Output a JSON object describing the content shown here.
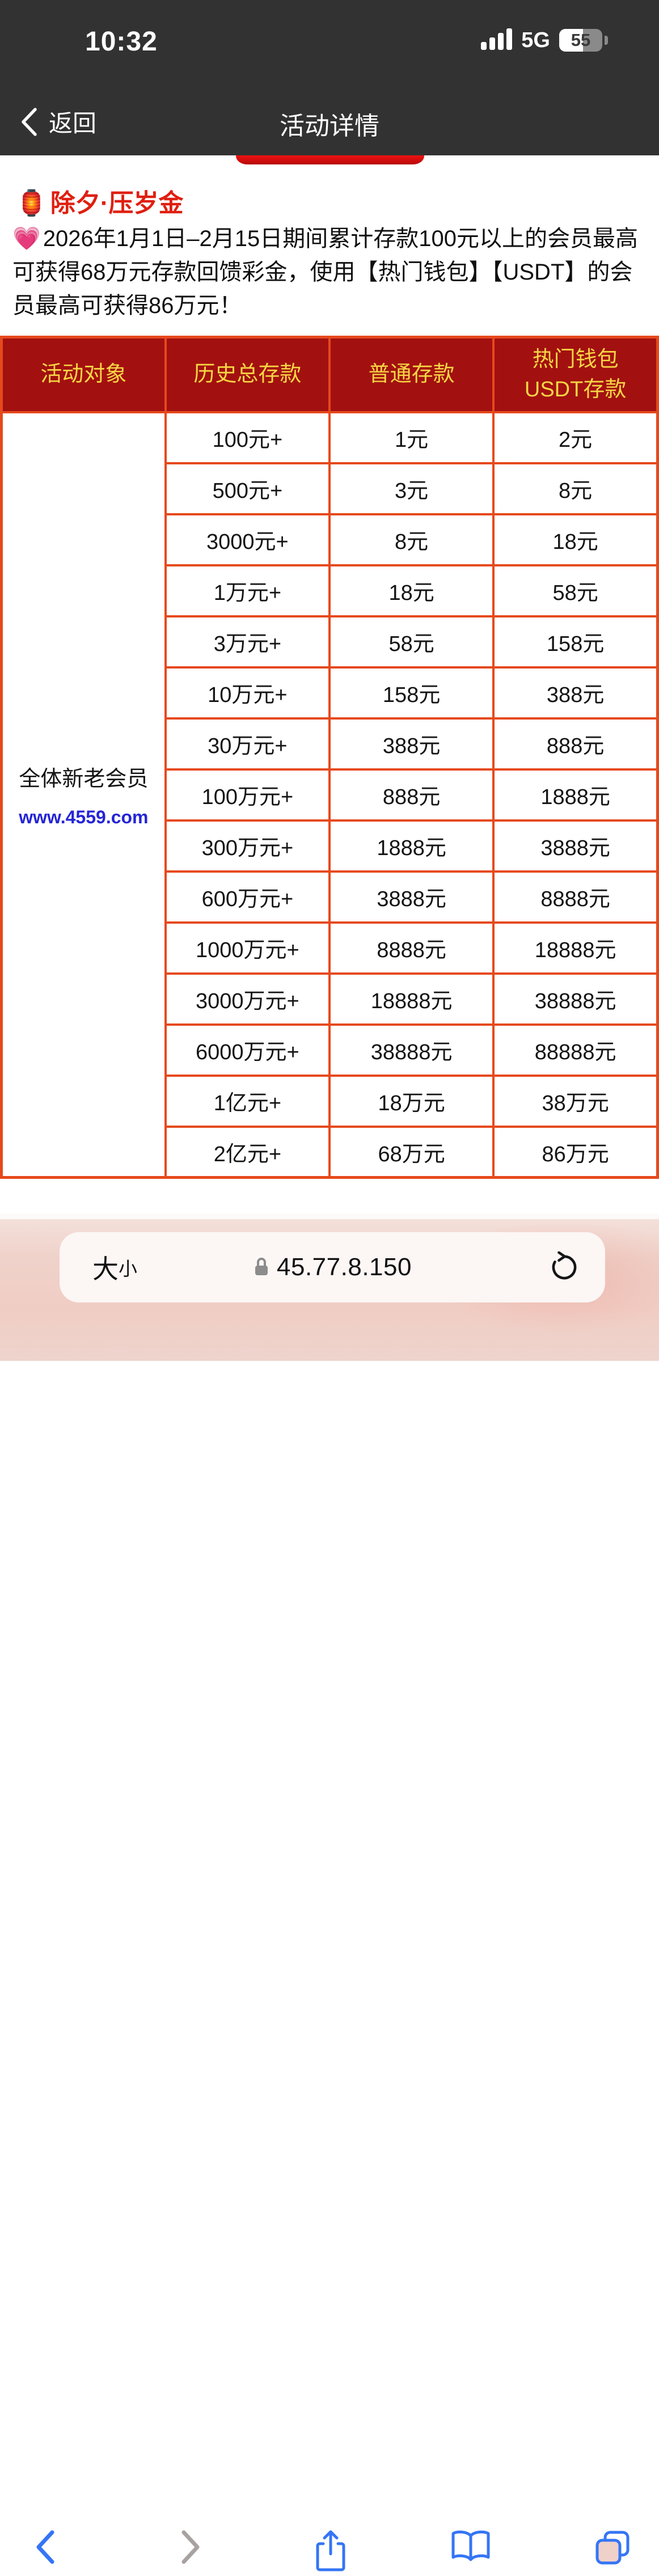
{
  "status_bar": {
    "time": "10:32",
    "network": "5G",
    "battery_percent": "55"
  },
  "nav_bar": {
    "back_label": "返回",
    "title": "活动详情"
  },
  "promo": {
    "title_emoji": "🏮",
    "title": "除夕·压岁金",
    "desc_emoji": "💗",
    "description": "2026年1月1日–2月15日期间累计存款100元以上的会员最高可获得68万元存款回馈彩金，使用【热门钱包】【USDT】的会员最高可获得86万元！"
  },
  "table": {
    "headers": [
      "活动对象",
      "历史总存款",
      "普通存款",
      "热门钱包\nUSDT存款"
    ],
    "audience": {
      "label": "全体新老会员",
      "link": "www.4559.com"
    },
    "rows": [
      [
        "100元+",
        "1元",
        "2元"
      ],
      [
        "500元+",
        "3元",
        "8元"
      ],
      [
        "3000元+",
        "8元",
        "18元"
      ],
      [
        "1万元+",
        "18元",
        "58元"
      ],
      [
        "3万元+",
        "58元",
        "158元"
      ],
      [
        "10万元+",
        "158元",
        "388元"
      ],
      [
        "30万元+",
        "388元",
        "888元"
      ],
      [
        "100万元+",
        "888元",
        "1888元"
      ],
      [
        "300万元+",
        "1888元",
        "3888元"
      ],
      [
        "600万元+",
        "3888元",
        "8888元"
      ],
      [
        "1000万元+",
        "8888元",
        "18888元"
      ],
      [
        "3000万元+",
        "18888元",
        "38888元"
      ],
      [
        "6000万元+",
        "38888元",
        "88888元"
      ],
      [
        "1亿元+",
        "18万元",
        "38万元"
      ],
      [
        "2亿元+",
        "68万元",
        "86万元"
      ]
    ]
  },
  "browser": {
    "text_size_big": "大",
    "text_size_small": "小",
    "url": "45.77.8.150",
    "icons": [
      "lock-icon",
      "reload-icon",
      "back-icon",
      "forward-icon",
      "share-icon",
      "bookmarks-icon",
      "tabs-icon"
    ]
  },
  "colors": {
    "header_bg": "#323232",
    "accent_red": "#df1f10",
    "table_border": "#e6491c",
    "table_header_bg": "#a21110",
    "table_header_text": "#f7d544",
    "link_blue": "#2525d6",
    "ios_blue": "#3575f6",
    "safari_bg": "#efd2ca"
  }
}
